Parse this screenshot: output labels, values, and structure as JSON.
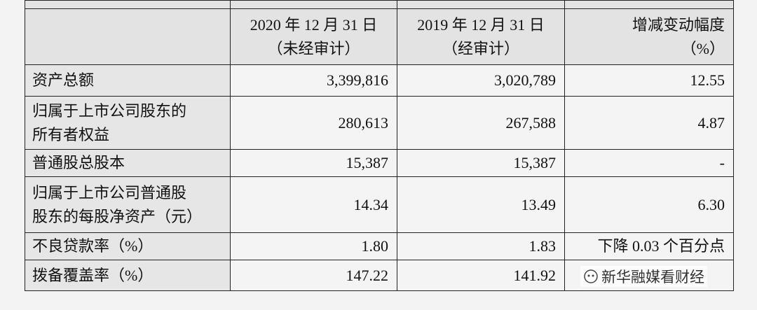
{
  "table": {
    "header": [
      [
        "2020 年 12 月 31 日",
        "（未经审计）"
      ],
      [
        "2019 年 12 月 31 日",
        "（经审计）"
      ],
      [
        "增减变动幅度",
        "（%）"
      ]
    ],
    "rows": [
      {
        "label": [
          "资产总额"
        ],
        "cells": [
          "3,399,816",
          "3,020,789",
          "12.55"
        ]
      },
      {
        "label": [
          "归属于上市公司股东的",
          "所有者权益"
        ],
        "cells": [
          "280,613",
          "267,588",
          "4.87"
        ]
      },
      {
        "label": [
          "普通股总股本"
        ],
        "cells": [
          "15,387",
          "15,387",
          "-"
        ]
      },
      {
        "label": [
          "归属于上市公司普通股",
          "股东的每股净资产（元）"
        ],
        "cells": [
          "14.34",
          "13.49",
          "6.30"
        ]
      },
      {
        "label": [
          "不良贷款率（%）"
        ],
        "cells": [
          "1.80",
          "1.83",
          "下降 0.03 个百分点"
        ]
      },
      {
        "label": [
          "拨备覆盖率（%）"
        ],
        "cells": [
          "147.22",
          "141.92"
        ]
      }
    ]
  },
  "watermark": "新华融媒看财经"
}
